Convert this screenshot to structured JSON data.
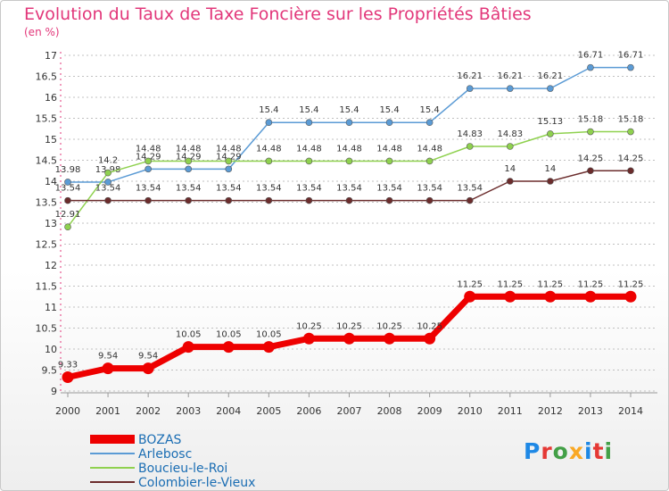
{
  "header": {
    "title": "Evolution du Taux de Taxe Foncière sur les Propriétés Bâties",
    "unit": "(en %)"
  },
  "colors": {
    "title": "#e2377a",
    "legend_text": "#1a6db3",
    "axis_ticks": "#e2377a",
    "grid": "#c0c0c0"
  },
  "logo": {
    "text": "Proxiti",
    "letter_colors": [
      "#1e88e5",
      "#e53935",
      "#43a047",
      "#f9a825",
      "#1e88e5",
      "#e53935",
      "#43a047"
    ]
  },
  "chart_data": {
    "type": "line",
    "title": "Evolution du Taux de Taxe Foncière sur les Propriétés Bâties",
    "ylabel": "(en %)",
    "xlabel": "",
    "categories": [
      "2000",
      "2001",
      "2002",
      "2003",
      "2004",
      "2005",
      "2006",
      "2007",
      "2008",
      "2009",
      "2010",
      "2011",
      "2012",
      "2013",
      "2014"
    ],
    "ylim": [
      9,
      17
    ],
    "yticks": [
      "9",
      "9.5",
      "10",
      "10.5",
      "11",
      "11.5",
      "12",
      "12.5",
      "13",
      "13.5",
      "14",
      "14.5",
      "15",
      "15.5",
      "16",
      "16.5",
      "17"
    ],
    "grid": "horizontal dashed",
    "legend_position": "bottom-left",
    "series": [
      {
        "name": "BOZAS",
        "color": "#ee0000",
        "emphasis": true,
        "values": [
          9.33,
          9.54,
          9.54,
          10.05,
          10.05,
          10.05,
          10.25,
          10.25,
          10.25,
          10.25,
          11.25,
          11.25,
          11.25,
          11.25,
          11.25
        ],
        "labels": [
          "9.33",
          "9.54",
          "9.54",
          "10.05",
          "10.05",
          "10.05",
          "10.25",
          "10.25",
          "10.25",
          "10.25",
          "11.25",
          "11.25",
          "11.25",
          "11.25",
          "11.25"
        ]
      },
      {
        "name": "Arlebosc",
        "color": "#5b9bd5",
        "emphasis": false,
        "values": [
          13.98,
          13.98,
          14.29,
          14.29,
          14.29,
          15.4,
          15.4,
          15.4,
          15.4,
          15.4,
          16.21,
          16.21,
          16.21,
          16.71,
          16.71
        ],
        "labels": [
          "13.98",
          "13.98",
          "14.29",
          "14.29",
          "14.29",
          "15.4",
          "15.4",
          "15.4",
          "15.4",
          "15.4",
          "16.21",
          "16.21",
          "16.21",
          "16.71",
          "16.71"
        ]
      },
      {
        "name": "Boucieu-le-Roi",
        "color": "#8fd14f",
        "emphasis": false,
        "values": [
          12.91,
          14.2,
          14.48,
          14.48,
          14.48,
          14.48,
          14.48,
          14.48,
          14.48,
          14.48,
          14.83,
          14.83,
          15.13,
          15.18,
          15.18
        ],
        "labels": [
          "12.91",
          "14.2",
          "14.48",
          "14.48",
          "14.48",
          "14.48",
          "14.48",
          "14.48",
          "14.48",
          "14.48",
          "14.83",
          "14.83",
          "15.13",
          "15.18",
          "15.18"
        ]
      },
      {
        "name": "Colombier-le-Vieux",
        "color": "#6b2c2c",
        "emphasis": false,
        "values": [
          13.54,
          13.54,
          13.54,
          13.54,
          13.54,
          13.54,
          13.54,
          13.54,
          13.54,
          13.54,
          13.54,
          14,
          14,
          14.25,
          14.25
        ],
        "labels": [
          "13.54",
          "13.54",
          "13.54",
          "13.54",
          "13.54",
          "13.54",
          "13.54",
          "13.54",
          "13.54",
          "13.54",
          "13.54",
          "14",
          "14",
          "14.25",
          "14.25"
        ]
      }
    ]
  }
}
